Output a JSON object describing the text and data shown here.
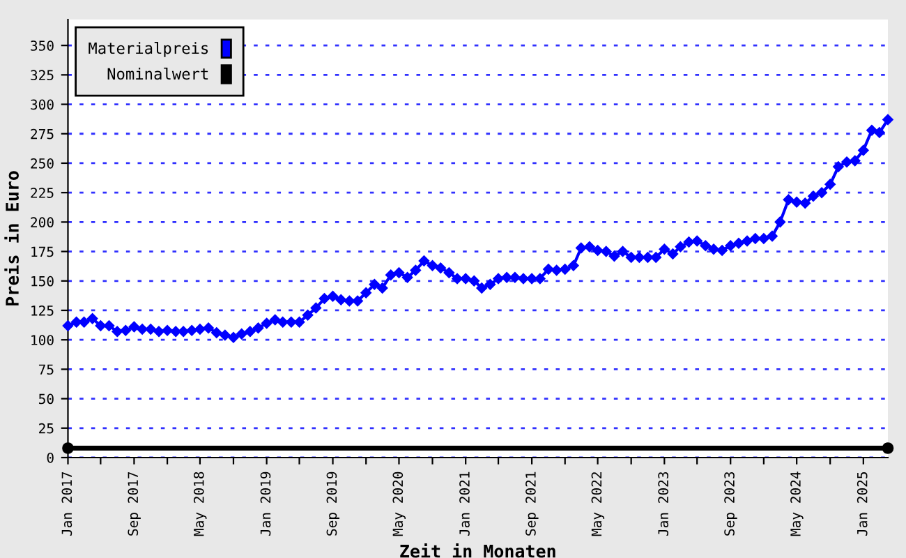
{
  "chart_data": {
    "type": "line",
    "xlabel": "Zeit in Monaten",
    "ylabel": "Preis in Euro",
    "x": [
      "2017-01",
      "2017-02",
      "2017-03",
      "2017-04",
      "2017-05",
      "2017-06",
      "2017-07",
      "2017-08",
      "2017-09",
      "2017-10",
      "2017-11",
      "2017-12",
      "2018-01",
      "2018-02",
      "2018-03",
      "2018-04",
      "2018-05",
      "2018-06",
      "2018-07",
      "2018-08",
      "2018-09",
      "2018-10",
      "2018-11",
      "2018-12",
      "2019-01",
      "2019-02",
      "2019-03",
      "2019-04",
      "2019-05",
      "2019-06",
      "2019-07",
      "2019-08",
      "2019-09",
      "2019-10",
      "2019-11",
      "2019-12",
      "2020-01",
      "2020-02",
      "2020-03",
      "2020-04",
      "2020-05",
      "2020-06",
      "2020-07",
      "2020-08",
      "2020-09",
      "2020-10",
      "2020-11",
      "2020-12",
      "2021-01",
      "2021-02",
      "2021-03",
      "2021-04",
      "2021-05",
      "2021-06",
      "2021-07",
      "2021-08",
      "2021-09",
      "2021-10",
      "2021-11",
      "2021-12",
      "2022-01",
      "2022-02",
      "2022-03",
      "2022-04",
      "2022-05",
      "2022-06",
      "2022-07",
      "2022-08",
      "2022-09",
      "2022-10",
      "2022-11",
      "2022-12",
      "2023-01",
      "2023-02",
      "2023-03",
      "2023-04",
      "2023-05",
      "2023-06",
      "2023-07",
      "2023-08",
      "2023-09",
      "2023-10",
      "2023-11",
      "2023-12",
      "2024-01",
      "2024-02",
      "2024-03",
      "2024-04",
      "2024-05",
      "2024-06",
      "2024-07",
      "2024-08",
      "2024-09",
      "2024-10",
      "2024-11",
      "2024-12",
      "2025-01",
      "2025-02",
      "2025-03",
      "2025-04"
    ],
    "series": [
      {
        "name": "Materialpreis",
        "color": "#0000ff",
        "marker": "diamond",
        "values": [
          112,
          115,
          115,
          118,
          112,
          112,
          107,
          108,
          111,
          109,
          109,
          107,
          108,
          107,
          107,
          108,
          109,
          110,
          106,
          104,
          102,
          105,
          107,
          110,
          114,
          117,
          115,
          115,
          115,
          121,
          127,
          135,
          137,
          134,
          133,
          133,
          140,
          147,
          144,
          155,
          157,
          153,
          159,
          167,
          163,
          161,
          157,
          152,
          152,
          150,
          144,
          147,
          152,
          153,
          153,
          152,
          152,
          152,
          160,
          159,
          160,
          163,
          178,
          179,
          176,
          175,
          171,
          175,
          170,
          170,
          170,
          170,
          177,
          173,
          179,
          183,
          184,
          180,
          177,
          176,
          180,
          182,
          184,
          186,
          186,
          188,
          200,
          219,
          217,
          216,
          222,
          225,
          232,
          247,
          251,
          252,
          261,
          278,
          276,
          287
        ]
      },
      {
        "name": "Nominalwert",
        "color": "#000000",
        "marker": "circle",
        "x": [
          "2017-01",
          "2025-04"
        ],
        "values": [
          8,
          8
        ]
      }
    ],
    "xlim": [
      "2017-01",
      "2025-04"
    ],
    "xticks": [
      {
        "value": "2017-01",
        "label": "Jan 2017"
      },
      {
        "value": "2017-05",
        "label": null
      },
      {
        "value": "2017-09",
        "label": "Sep 2017"
      },
      {
        "value": "2018-01",
        "label": null
      },
      {
        "value": "2018-05",
        "label": "May 2018"
      },
      {
        "value": "2018-09",
        "label": null
      },
      {
        "value": "2019-01",
        "label": "Jan 2019"
      },
      {
        "value": "2019-05",
        "label": null
      },
      {
        "value": "2019-09",
        "label": "Sep 2019"
      },
      {
        "value": "2020-01",
        "label": null
      },
      {
        "value": "2020-05",
        "label": "May 2020"
      },
      {
        "value": "2020-09",
        "label": null
      },
      {
        "value": "2021-01",
        "label": "Jan 2021"
      },
      {
        "value": "2021-05",
        "label": null
      },
      {
        "value": "2021-09",
        "label": "Sep 2021"
      },
      {
        "value": "2022-01",
        "label": null
      },
      {
        "value": "2022-05",
        "label": "May 2022"
      },
      {
        "value": "2022-09",
        "label": null
      },
      {
        "value": "2023-01",
        "label": "Jan 2023"
      },
      {
        "value": "2023-05",
        "label": null
      },
      {
        "value": "2023-09",
        "label": "Sep 2023"
      },
      {
        "value": "2024-01",
        "label": null
      },
      {
        "value": "2024-05",
        "label": "May 2024"
      },
      {
        "value": "2024-09",
        "label": null
      },
      {
        "value": "2025-01",
        "label": "Jan 2025"
      }
    ],
    "ylim": [
      0,
      372
    ],
    "yticks": [
      0,
      25,
      50,
      75,
      100,
      125,
      150,
      175,
      200,
      225,
      250,
      275,
      300,
      325,
      350
    ],
    "grid": "y",
    "legend": "top left",
    "line_style": "solid"
  }
}
